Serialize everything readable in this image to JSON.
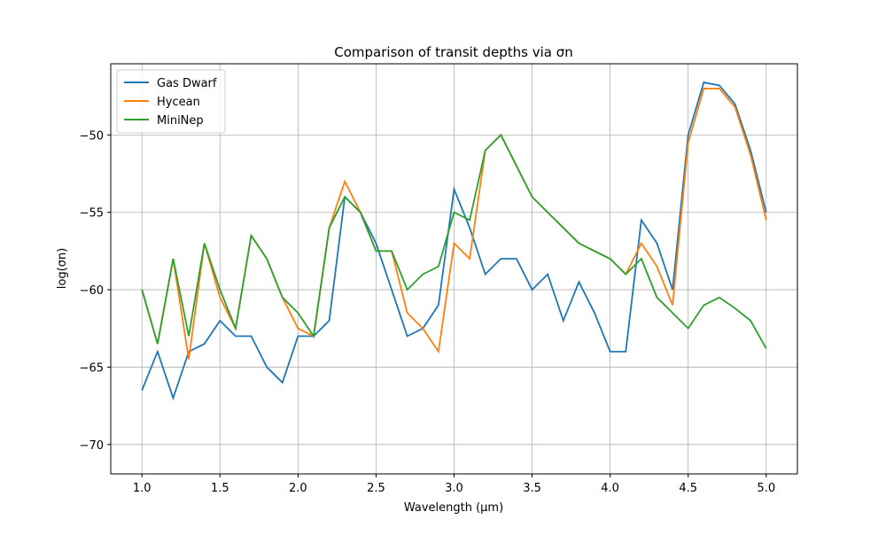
{
  "chart_data": {
    "type": "line",
    "title": "Comparison of transit depths via σn",
    "x_label": "Wavelength (μm)",
    "y_label": "log(σn)",
    "x": [
      1.0,
      1.1,
      1.2,
      1.3,
      1.4,
      1.5,
      1.6,
      1.7,
      1.8,
      1.9,
      2.0,
      2.1,
      2.2,
      2.3,
      2.4,
      2.5,
      2.6,
      2.7,
      2.8,
      2.9,
      3.0,
      3.1,
      3.2,
      3.3,
      3.4,
      3.5,
      3.6,
      3.7,
      3.8,
      3.9,
      4.0,
      4.1,
      4.2,
      4.3,
      4.4,
      4.5,
      4.6,
      4.7,
      4.8,
      4.9,
      5.0
    ],
    "series": [
      {
        "name": "Gas Dwarf",
        "color": "#1f77b4",
        "values": [
          -66.5,
          -64,
          -67,
          -64,
          -63.5,
          -62,
          -63,
          -63,
          -65,
          -66,
          -63,
          -63,
          -62,
          -54,
          -55,
          -57,
          -60,
          -63,
          -62.5,
          -61,
          -53.5,
          -56,
          -59,
          -58,
          -58,
          -60,
          -59,
          -62,
          -59.5,
          -61.5,
          -64,
          -64,
          -55.5,
          -57,
          -60,
          -50,
          -46.6,
          -46.8,
          -48,
          -51,
          -55
        ]
      },
      {
        "name": "Hycean",
        "color": "#ff7f0e",
        "values": [
          -60,
          -63.5,
          -58,
          -64.5,
          -57,
          -60.5,
          -62.5,
          -56.5,
          -58,
          -60.5,
          -62.5,
          -63,
          -56,
          -53,
          -55,
          -57.5,
          -57.5,
          -61.5,
          -62.5,
          -64,
          -57,
          -58,
          -51,
          -50,
          -52,
          -54,
          -55,
          -56,
          -57,
          -57.5,
          -58,
          -59,
          -57,
          -58.5,
          -61,
          -50.5,
          -47,
          -47,
          -48.2,
          -51.3,
          -55.5
        ]
      },
      {
        "name": "MiniNep",
        "color": "#2ca02c",
        "values": [
          -60,
          -63.5,
          -58,
          -63,
          -57,
          -60,
          -62.5,
          -56.5,
          -58,
          -60.5,
          -61.5,
          -63,
          -56,
          -54,
          -55,
          -57.5,
          -57.5,
          -60,
          -59,
          -58.5,
          -55,
          -55.5,
          -51,
          -50,
          -52,
          -54,
          -55,
          -56,
          -57,
          -57.5,
          -58,
          -59,
          -58,
          -60.5,
          -61.5,
          -62.5,
          -61,
          -60.5,
          -61.2,
          -62,
          -63.8
        ]
      }
    ],
    "xlim": [
      0.8,
      5.2
    ],
    "ylim": [
      -71.9,
      -45.4
    ],
    "xticks": [
      {
        "value": 1,
        "label": "1.0"
      },
      {
        "value": 1.5,
        "label": "1.5"
      },
      {
        "value": 2,
        "label": "2.0"
      },
      {
        "value": 2.5,
        "label": "2.5"
      },
      {
        "value": 3,
        "label": "3.0"
      },
      {
        "value": 3.5,
        "label": "3.5"
      },
      {
        "value": 4,
        "label": "4.0"
      },
      {
        "value": 4.5,
        "label": "4.5"
      },
      {
        "value": 5,
        "label": "5.0"
      }
    ],
    "yticks": [
      {
        "value": -70,
        "label": "−70"
      },
      {
        "value": -65,
        "label": "−65"
      },
      {
        "value": -60,
        "label": "−60"
      },
      {
        "value": -55,
        "label": "−55"
      },
      {
        "value": -50,
        "label": "−50"
      }
    ],
    "grid": true,
    "legend": "upper-left"
  }
}
